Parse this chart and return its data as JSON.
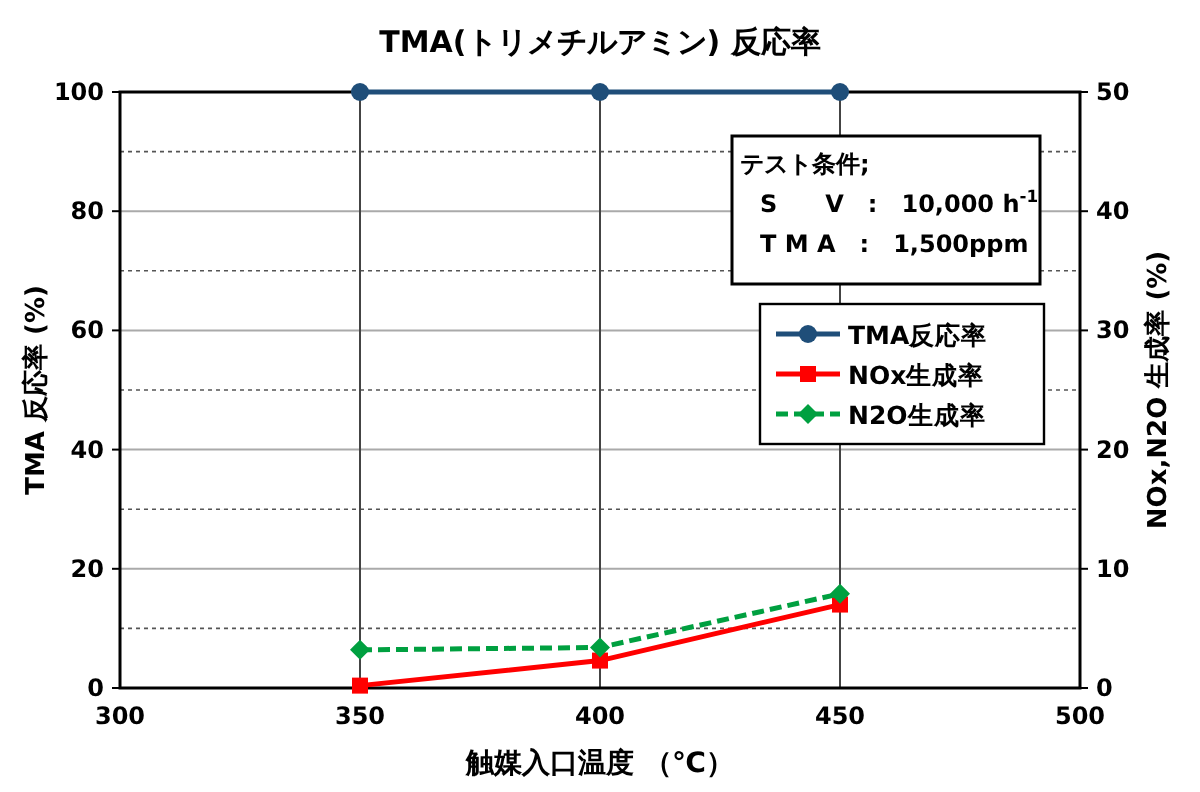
{
  "chart_data": {
    "type": "line",
    "title": "TMA(トリメチルアミン) 反応率",
    "xlabel": "触媒入口温度 （℃）",
    "ylabel": "TMA 反応率 (%)",
    "y2label": "NOx,N2O 生成率 (%)",
    "x": [
      350,
      400,
      450
    ],
    "series": [
      {
        "name": "TMA反応率",
        "color": "#1f4e79",
        "values": [
          100,
          100,
          100
        ],
        "marker": "circle",
        "line_style": "solid"
      },
      {
        "name": "NOx生成率",
        "color": "#ff0000",
        "values": [
          0.2,
          2.3,
          7.0
        ],
        "marker": "square",
        "line_style": "solid",
        "axis": "y2"
      },
      {
        "name": "N2O生成率",
        "color": "#00a040",
        "values": [
          3.2,
          3.4,
          7.9
        ],
        "marker": "diamond",
        "line_style": "dashed",
        "axis": "y2"
      }
    ],
    "xlim": [
      300,
      500
    ],
    "xticks": [
      300,
      350,
      400,
      450,
      500
    ],
    "ylim": [
      0,
      100
    ],
    "yticks": [
      0,
      20,
      40,
      60,
      80,
      100
    ],
    "y2lim": [
      0,
      50
    ],
    "y2ticks": [
      0,
      10,
      20,
      30,
      40,
      50
    ],
    "grid": true,
    "legend": "right",
    "annotations": [
      "テスト条件;",
      "S　　V　:　10,000 h$^{-1}$",
      "T M A　:　1,500ppm"
    ]
  }
}
